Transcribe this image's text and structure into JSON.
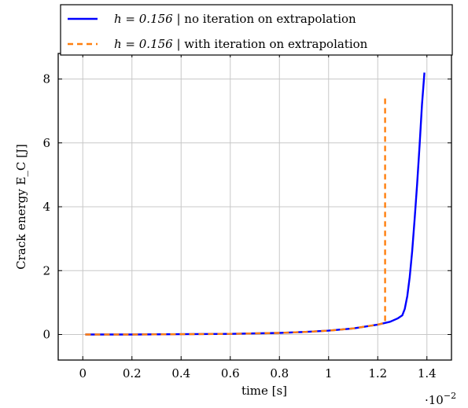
{
  "chart_data": {
    "type": "line",
    "xlabel": "time [s]",
    "ylabel": "Crack energy E_C [J]",
    "x_multiplier_label": "·10",
    "x_multiplier_exp": "−2",
    "xlim": [
      -0.1,
      1.5
    ],
    "ylim": [
      -0.8,
      8.8
    ],
    "xticks": [
      0,
      0.2,
      0.4,
      0.6,
      0.8,
      1,
      1.2,
      1.4
    ],
    "xtick_labels": [
      "0",
      "0.2",
      "0.4",
      "0.6",
      "0.8",
      "1",
      "1.2",
      "1.4"
    ],
    "yticks": [
      0,
      2,
      4,
      6,
      8
    ],
    "ytick_labels": [
      "0",
      "2",
      "4",
      "6",
      "8"
    ],
    "grid": true,
    "legend_position": "top, above plot",
    "series": [
      {
        "name": "h = 0.156 | no iteration on extrapolation",
        "color": "#0000ff",
        "style": "solid",
        "x": [
          0.01,
          0.2,
          0.4,
          0.6,
          0.8,
          0.9,
          1.0,
          1.1,
          1.2,
          1.25,
          1.28,
          1.3,
          1.31,
          1.32,
          1.33,
          1.34,
          1.35,
          1.36,
          1.37,
          1.38,
          1.39
        ],
        "y": [
          0.0,
          0.0,
          0.01,
          0.02,
          0.05,
          0.08,
          0.12,
          0.19,
          0.31,
          0.4,
          0.5,
          0.6,
          0.8,
          1.2,
          1.8,
          2.6,
          3.6,
          4.7,
          5.9,
          7.2,
          8.2
        ]
      },
      {
        "name": "h = 0.156 | with iteration on extrapolation",
        "color": "#ff7f0e",
        "style": "dashed",
        "x": [
          0.01,
          0.2,
          0.4,
          0.6,
          0.8,
          0.9,
          1.0,
          1.1,
          1.2,
          1.22,
          1.23,
          1.23
        ],
        "y": [
          0.0,
          0.0,
          0.01,
          0.02,
          0.05,
          0.08,
          0.12,
          0.19,
          0.31,
          0.35,
          0.38,
          7.5
        ]
      }
    ]
  },
  "legend": {
    "entries": [
      {
        "math": "h = 0.156",
        "text": " | no iteration on extrapolation"
      },
      {
        "math": "h = 0.156",
        "text": " | with iteration on extrapolation"
      }
    ]
  }
}
